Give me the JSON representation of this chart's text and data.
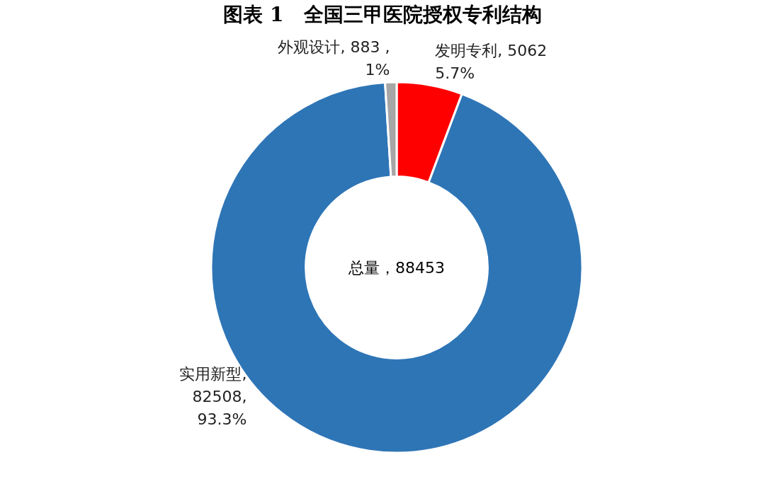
{
  "chart_data": {
    "type": "donut",
    "title": "图表 1　全国三甲医院授权专利结构",
    "categories": [
      "发明专利",
      "实用新型",
      "外观设计"
    ],
    "values": [
      5062,
      82508,
      883
    ],
    "colors": [
      "#ff0000",
      "#2e75b6",
      "#a6a6a6"
    ],
    "value_labels": [
      ", 5062\n5.7%",
      ",\n82508,\n93.3%",
      ", 883 ,\n1%"
    ],
    "annotations": [
      "总量，88453"
    ]
  }
}
